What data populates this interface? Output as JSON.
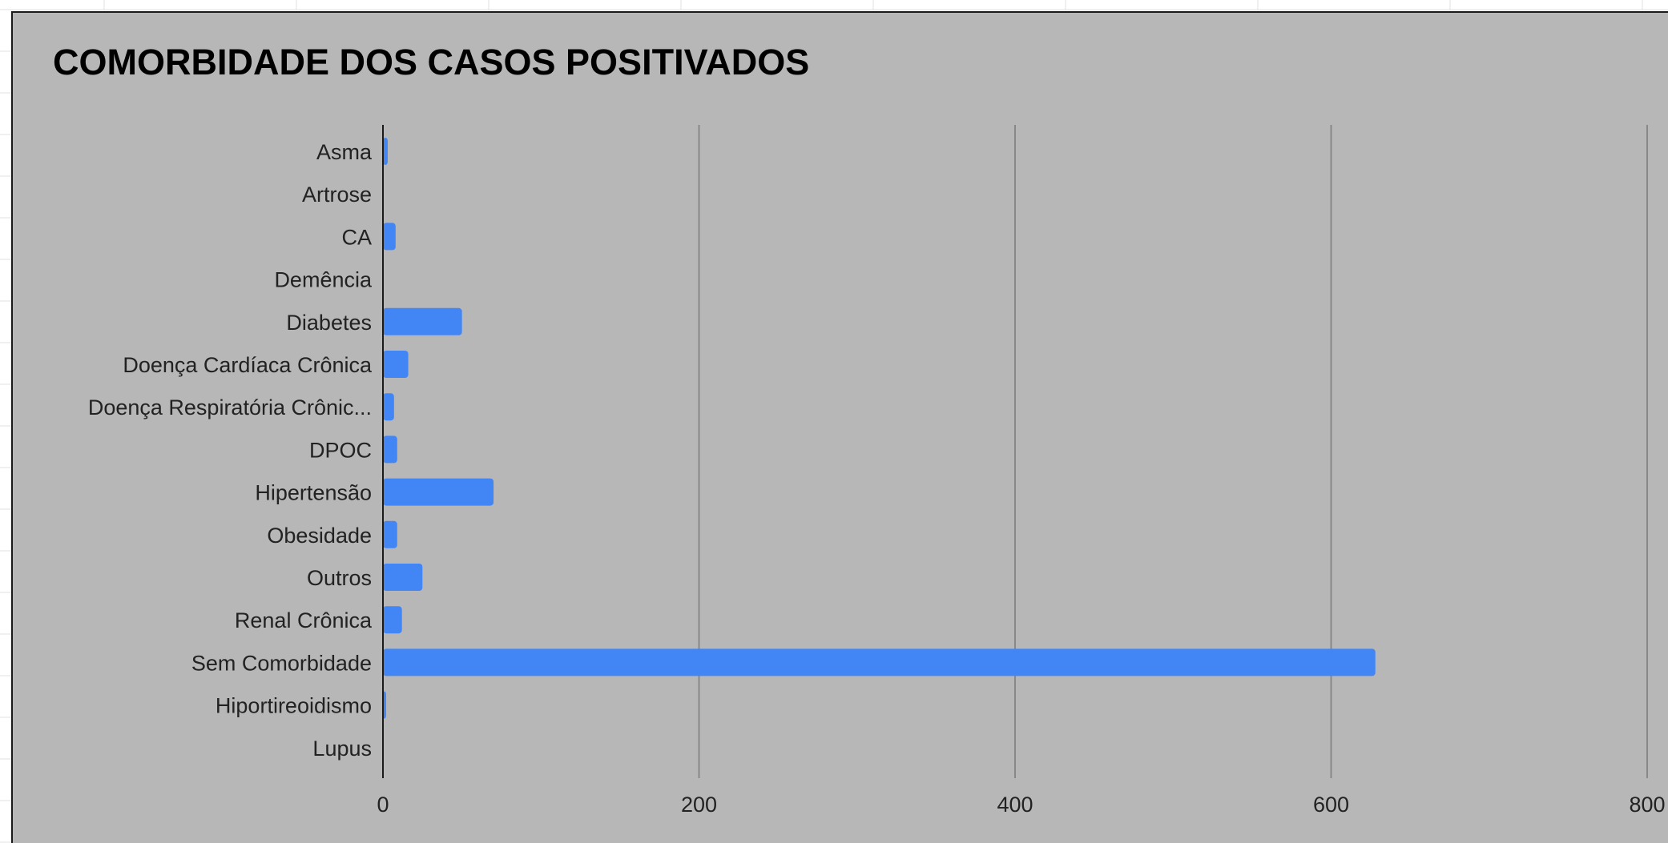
{
  "colors": {
    "bar": "#4285f4",
    "panel": "#b7b7b7",
    "gridline": "#888888",
    "axis": "#1a1a1a",
    "text": "#222222"
  },
  "chart_data": {
    "type": "bar",
    "orientation": "horizontal",
    "title": "COMORBIDADE DOS CASOS POSITIVADOS",
    "xlabel": "",
    "ylabel": "",
    "categories": [
      "Asma",
      "Artrose",
      "CA",
      "Demência",
      "Diabetes",
      "Doença Cardíaca Crônica",
      "Doença Respiratória Crônic...",
      "DPOC",
      "Hipertensão",
      "Obesidade",
      "Outros",
      "Renal Crônica",
      "Sem Comorbidade",
      "Hiportireoidismo",
      "Lupus"
    ],
    "values": [
      3,
      0,
      8,
      0,
      50,
      16,
      7,
      9,
      70,
      9,
      25,
      12,
      628,
      2,
      0
    ],
    "xlim": [
      0,
      800
    ],
    "xticks": [
      "0",
      "200",
      "400",
      "600",
      "800"
    ],
    "grid": true,
    "legend": "none"
  }
}
